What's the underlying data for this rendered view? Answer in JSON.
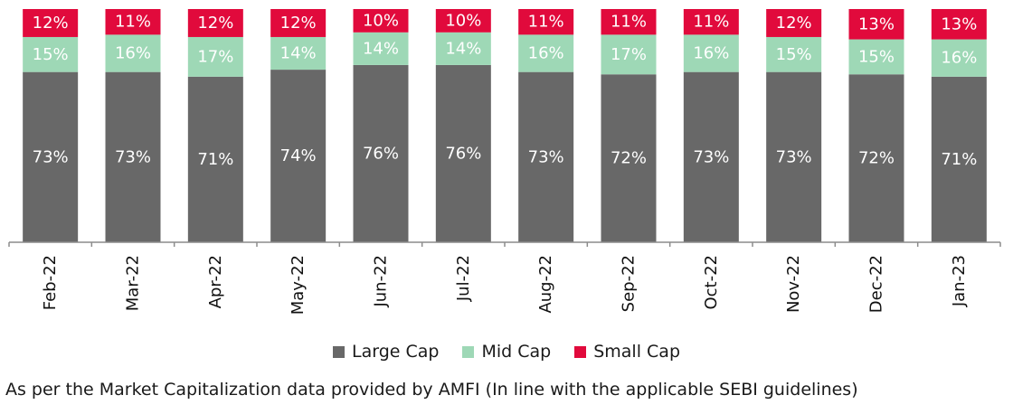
{
  "chart_data": {
    "type": "bar",
    "stacked": true,
    "percent_stacked": true,
    "categories": [
      "Feb-22",
      "Mar-22",
      "Apr-22",
      "May-22",
      "Jun-22",
      "Jul-22",
      "Aug-22",
      "Sep-22",
      "Oct-22",
      "Nov-22",
      "Dec-22",
      "Jan-23"
    ],
    "series": [
      {
        "name": "Large Cap",
        "color": "#686868",
        "values": [
          73,
          73,
          71,
          74,
          76,
          76,
          73,
          72,
          73,
          73,
          72,
          71
        ]
      },
      {
        "name": "Mid Cap",
        "color": "#9ed8b6",
        "values": [
          15,
          16,
          17,
          14,
          14,
          14,
          16,
          17,
          16,
          15,
          15,
          16
        ]
      },
      {
        "name": "Small Cap",
        "color": "#e10a3c",
        "values": [
          12,
          11,
          12,
          12,
          10,
          10,
          11,
          11,
          11,
          12,
          13,
          13
        ]
      }
    ],
    "data_label_suffix": "%",
    "tick_label_rotation": "vertical",
    "legend_position": "bottom",
    "grid": false,
    "title": "",
    "xlabel": "",
    "ylabel": ""
  },
  "legend": {
    "items": [
      {
        "label": "Large Cap",
        "color": "#686868"
      },
      {
        "label": "Mid Cap",
        "color": "#9ed8b6"
      },
      {
        "label": "Small Cap",
        "color": "#e10a3c"
      }
    ]
  },
  "footnote": "As per the Market Capitalization data provided by AMFI (In line with the applicable SEBI guidelines)"
}
